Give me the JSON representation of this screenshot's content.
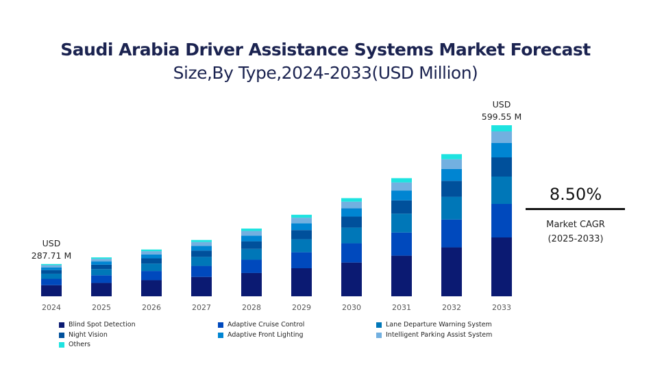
{
  "title": "Saudi Arabia Driver Assistance Systems Market Forecast",
  "subtitle": "Size,By Type,2024-2033(USD Million)",
  "cagr": {
    "value": "8.50%",
    "label": "Market CAGR",
    "period": "(2025-2033)"
  },
  "chart_data": {
    "type": "bar",
    "stacked": true,
    "title": "Saudi Arabia Driver Assistance Systems Market Forecast",
    "subtitle": "Size,By Type,2024-2033(USD Million)",
    "categories": [
      "2024",
      "2025",
      "2026",
      "2027",
      "2028",
      "2029",
      "2030",
      "2031",
      "2032",
      "2033"
    ],
    "totals": [
      287.71,
      312.2,
      338.7,
      367.5,
      398.7,
      432.6,
      469.4,
      509.3,
      552.6,
      599.55
    ],
    "annotations": [
      {
        "category": "2024",
        "line1": "USD",
        "line2": "287.71 M"
      },
      {
        "category": "2033",
        "line1": "USD",
        "line2": "599.55 M"
      }
    ],
    "series": [
      {
        "name": "Blind Spot Detection",
        "color": "#0b1a72",
        "share": 0.344
      },
      {
        "name": "Adaptive Cruise Control",
        "color": "#0049bd",
        "share": 0.196
      },
      {
        "name": "Lane Departure Warning System",
        "color": "#0077b8",
        "share": 0.16
      },
      {
        "name": "Night Vision",
        "color": "#00509b",
        "share": 0.112
      },
      {
        "name": "Adaptive Front Lighting",
        "color": "#0085d2",
        "share": 0.084
      },
      {
        "name": "Intelligent Parking Assist System",
        "color": "#72b0e0",
        "share": 0.068
      },
      {
        "name": "Others",
        "color": "#1ee3e0",
        "share": 0.036
      }
    ],
    "xlabel": "",
    "ylabel": "",
    "grid": false,
    "legend": "bottom"
  }
}
